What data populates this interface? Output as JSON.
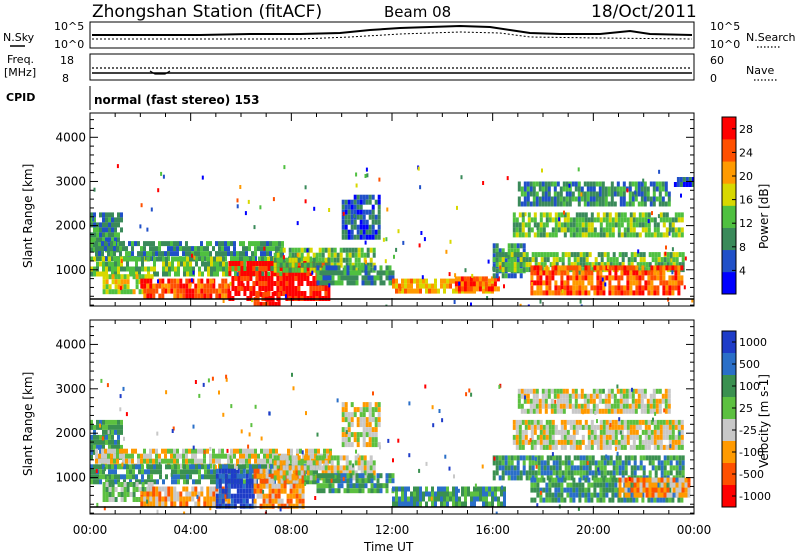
{
  "header": {
    "station_title": "Zhongshan Station (fitACF)",
    "beam": "Beam 08",
    "date": "18/Oct/2011"
  },
  "noise_panel": {
    "left_label": "N.Sky",
    "right_label": "N.Search",
    "left_ticks": [
      "10^5",
      "10^0"
    ],
    "right_ticks": [
      "10^5",
      "10^0"
    ]
  },
  "freq_panel": {
    "left_label_line1": "Freq.",
    "left_label_line2": "[MHz]",
    "right_label": "Nave",
    "left_ticks": [
      "18",
      "8"
    ],
    "right_ticks": [
      "60",
      "0"
    ]
  },
  "cpid": {
    "label": "CPID",
    "mode": "normal (fast stereo) 153"
  },
  "colors": {
    "power": [
      "#0000ff",
      "#2050c8",
      "#3a8a5a",
      "#4fc040",
      "#d8d800",
      "#ff9a00",
      "#ff5000",
      "#ff0000"
    ],
    "velocity": [
      "#1e3cc8",
      "#2a6fc8",
      "#3a9050",
      "#5cc040",
      "#c8c8c8",
      "#ff9a00",
      "#ff5000",
      "#ff0000"
    ]
  },
  "chart_data": [
    {
      "type": "heatmap",
      "title": "",
      "ylabel": "Slant Range [km]",
      "xlabel": "",
      "x_ticks": [
        "00:00",
        "04:00",
        "08:00",
        "12:00",
        "16:00",
        "20:00",
        "00:00"
      ],
      "y_ticks": [
        1000,
        2000,
        3000,
        4000
      ],
      "xlim_hours": [
        0,
        24
      ],
      "ylim_km": [
        180,
        4550
      ],
      "colorbar": {
        "label": "Power [dB]",
        "ticks": [
          "4",
          "8",
          "12",
          "16",
          "20",
          "24",
          "28"
        ],
        "range": [
          0,
          30
        ]
      },
      "regions": [
        {
          "t0": 0.0,
          "t1": 1.2,
          "r0": 1500,
          "r1": 2300,
          "level": 2
        },
        {
          "t0": 0.2,
          "t1": 7.6,
          "r0": 1300,
          "r1": 1650,
          "level": 2
        },
        {
          "t0": 0.0,
          "t1": 9.0,
          "r0": 950,
          "r1": 1300,
          "level": 3
        },
        {
          "t0": 0.5,
          "t1": 2.5,
          "r0": 500,
          "r1": 900,
          "level": 4
        },
        {
          "t0": 2.0,
          "t1": 5.5,
          "r0": 400,
          "r1": 800,
          "level": 6
        },
        {
          "t0": 5.5,
          "t1": 9.5,
          "r0": 400,
          "r1": 1200,
          "level": 7
        },
        {
          "t0": 6.5,
          "t1": 7.5,
          "r0": 200,
          "r1": 500,
          "level": 7
        },
        {
          "t0": 7.3,
          "t1": 11.3,
          "r0": 1000,
          "r1": 1500,
          "level": 3
        },
        {
          "t0": 9.0,
          "t1": 12.0,
          "r0": 700,
          "r1": 1100,
          "level": 2
        },
        {
          "t0": 10.0,
          "t1": 11.5,
          "r0": 1700,
          "r1": 2700,
          "level": 1
        },
        {
          "t0": 12.0,
          "t1": 16.0,
          "r0": 500,
          "r1": 800,
          "level": 5
        },
        {
          "t0": 14.5,
          "t1": 16.2,
          "r0": 600,
          "r1": 850,
          "level": 6
        },
        {
          "t0": 16.0,
          "t1": 17.3,
          "r0": 900,
          "r1": 1600,
          "level": 2
        },
        {
          "t0": 16.0,
          "t1": 23.6,
          "r0": 1000,
          "r1": 1400,
          "level": 3
        },
        {
          "t0": 17.5,
          "t1": 23.5,
          "r0": 500,
          "r1": 1100,
          "level": 6
        },
        {
          "t0": 16.8,
          "t1": 23.5,
          "r0": 1800,
          "r1": 2300,
          "level": 3
        },
        {
          "t0": 17.0,
          "t1": 23.0,
          "r0": 2500,
          "r1": 3000,
          "level": 2
        },
        {
          "t0": 23.2,
          "t1": 24.0,
          "r0": 2900,
          "r1": 3100,
          "level": 1
        }
      ]
    },
    {
      "type": "heatmap",
      "title": "",
      "ylabel": "Slant Range [km]",
      "xlabel": "Time UT",
      "x_ticks": [
        "00:00",
        "04:00",
        "08:00",
        "12:00",
        "16:00",
        "20:00",
        "00:00"
      ],
      "y_ticks": [
        1000,
        2000,
        3000,
        4000
      ],
      "xlim_hours": [
        0,
        24
      ],
      "ylim_km": [
        180,
        4550
      ],
      "colorbar": {
        "label": "Velocity [m s-1]",
        "ticks": [
          "1000",
          "500",
          "100",
          "25",
          "-25",
          "-100",
          "-500",
          "-1000"
        ]
      },
      "regions": [
        {
          "t0": 0.0,
          "t1": 1.2,
          "r0": 1500,
          "r1": 2300,
          "level": 2
        },
        {
          "t0": 0.2,
          "t1": 9.5,
          "r0": 1250,
          "r1": 1650,
          "level": 4
        },
        {
          "t0": 0.0,
          "t1": 9.0,
          "r0": 950,
          "r1": 1300,
          "level": 2
        },
        {
          "t0": 0.5,
          "t1": 2.5,
          "r0": 500,
          "r1": 900,
          "level": 3
        },
        {
          "t0": 2.0,
          "t1": 5.5,
          "r0": 400,
          "r1": 800,
          "level": 5
        },
        {
          "t0": 5.0,
          "t1": 6.5,
          "r0": 300,
          "r1": 1200,
          "level": 0
        },
        {
          "t0": 6.5,
          "t1": 8.5,
          "r0": 400,
          "r1": 1200,
          "level": 5
        },
        {
          "t0": 7.3,
          "t1": 11.3,
          "r0": 1000,
          "r1": 1500,
          "level": 4
        },
        {
          "t0": 9.0,
          "t1": 12.0,
          "r0": 700,
          "r1": 1100,
          "level": 2
        },
        {
          "t0": 10.0,
          "t1": 11.5,
          "r0": 1700,
          "r1": 2700,
          "level": 4
        },
        {
          "t0": 12.0,
          "t1": 16.5,
          "r0": 450,
          "r1": 800,
          "level": 2
        },
        {
          "t0": 16.0,
          "t1": 23.6,
          "r0": 1000,
          "r1": 1500,
          "level": 2
        },
        {
          "t0": 17.5,
          "t1": 23.5,
          "r0": 500,
          "r1": 1000,
          "level": 2
        },
        {
          "t0": 21.0,
          "t1": 23.8,
          "r0": 600,
          "r1": 1000,
          "level": 5
        },
        {
          "t0": 16.8,
          "t1": 23.5,
          "r0": 1700,
          "r1": 2300,
          "level": 4
        },
        {
          "t0": 17.0,
          "t1": 23.0,
          "r0": 2500,
          "r1": 3000,
          "level": 4
        }
      ]
    }
  ]
}
